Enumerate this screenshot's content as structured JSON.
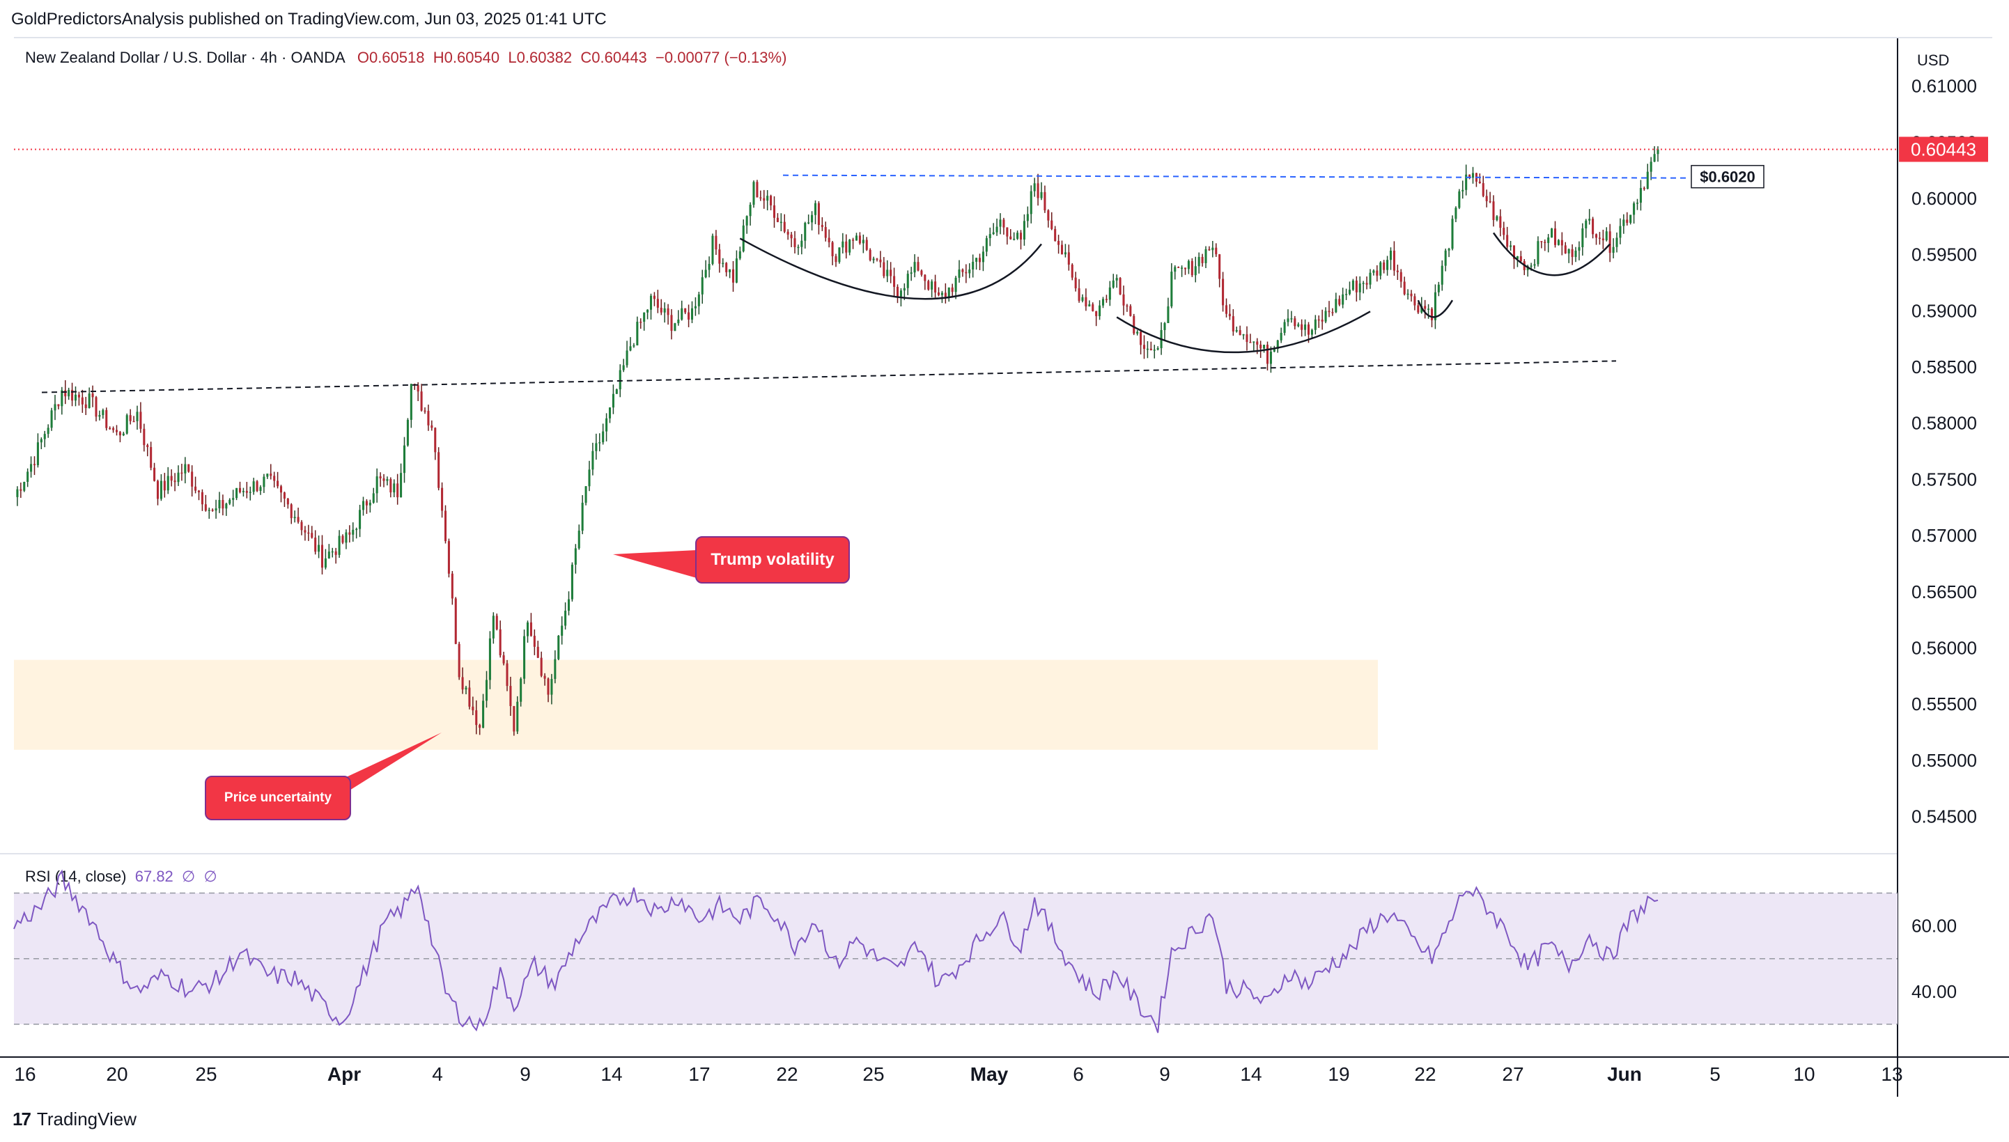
{
  "header": {
    "publisher": "GoldPredictorsAnalysis published on TradingView.com, Jun 03, 2025 01:41 UTC"
  },
  "legend": {
    "symbol": "New Zealand Dollar / U.S. Dollar · 4h · OANDA",
    "open": "O0.60518",
    "high": "H0.60540",
    "low": "L0.60382",
    "close": "C0.60443",
    "change": "−0.00077 (−0.13%)"
  },
  "axis": {
    "currency": "USD"
  },
  "rsi_legend": {
    "label": "RSI (14, close)",
    "value": "67.82",
    "extra1": "∅",
    "extra2": "∅"
  },
  "footer": {
    "brand": "TradingView",
    "logo": "17"
  },
  "colors": {
    "up": "#26a69a",
    "up_body": "#1e7d3a",
    "down": "#b22833",
    "rsi": "#7e57c2",
    "rsi_band": "#ede7f6",
    "accent": "#f23645",
    "zone": "#fff3e0",
    "level": "#2962ff"
  },
  "annotations": {
    "trump": "Trump volatility",
    "uncertainty": "Price uncertainty",
    "resistance_label": "$0.6020",
    "last_price": "0.60443"
  },
  "chart_data": [
    {
      "type": "candlestick",
      "title": "New Zealand Dollar / U.S. Dollar · 4h · OANDA",
      "ylim": [
        0.542,
        0.614
      ],
      "y_ticks": [
        "0.61000",
        "0.60500",
        "0.60000",
        "0.59500",
        "0.59000",
        "0.58500",
        "0.58000",
        "0.57500",
        "0.57000",
        "0.56500",
        "0.56000",
        "0.55500",
        "0.55000",
        "0.54500"
      ],
      "x_ticks": [
        "16",
        "20",
        "25",
        "Apr",
        "4",
        "9",
        "14",
        "17",
        "22",
        "25",
        "May",
        "6",
        "9",
        "14",
        "19",
        "22",
        "27",
        "Jun",
        "5",
        "10",
        "13"
      ],
      "last_price": 0.60443,
      "resistance": 0.602,
      "path_anchors": [
        [
          0,
          0.5735
        ],
        [
          6,
          0.577
        ],
        [
          14,
          0.583
        ],
        [
          22,
          0.582
        ],
        [
          30,
          0.579
        ],
        [
          36,
          0.581
        ],
        [
          42,
          0.574
        ],
        [
          50,
          0.576
        ],
        [
          58,
          0.572
        ],
        [
          66,
          0.574
        ],
        [
          74,
          0.575
        ],
        [
          82,
          0.572
        ],
        [
          90,
          0.568
        ],
        [
          98,
          0.57
        ],
        [
          106,
          0.575
        ],
        [
          112,
          0.574
        ],
        [
          116,
          0.5835
        ],
        [
          122,
          0.58
        ],
        [
          126,
          0.57
        ],
        [
          130,
          0.558
        ],
        [
          136,
          0.553
        ],
        [
          140,
          0.563
        ],
        [
          146,
          0.553
        ],
        [
          150,
          0.563
        ],
        [
          156,
          0.556
        ],
        [
          162,
          0.565
        ],
        [
          168,
          0.576
        ],
        [
          174,
          0.581
        ],
        [
          180,
          0.587
        ],
        [
          186,
          0.591
        ],
        [
          192,
          0.589
        ],
        [
          198,
          0.59
        ],
        [
          204,
          0.596
        ],
        [
          210,
          0.593
        ],
        [
          216,
          0.601
        ],
        [
          222,
          0.599
        ],
        [
          228,
          0.596
        ],
        [
          234,
          0.599
        ],
        [
          240,
          0.595
        ],
        [
          246,
          0.597
        ],
        [
          252,
          0.594
        ],
        [
          258,
          0.592
        ],
        [
          264,
          0.594
        ],
        [
          270,
          0.591
        ],
        [
          276,
          0.593
        ],
        [
          282,
          0.595
        ],
        [
          288,
          0.598
        ],
        [
          294,
          0.596
        ],
        [
          298,
          0.6015
        ],
        [
          304,
          0.597
        ],
        [
          310,
          0.592
        ],
        [
          316,
          0.59
        ],
        [
          322,
          0.593
        ],
        [
          328,
          0.588
        ],
        [
          334,
          0.586
        ],
        [
          338,
          0.593
        ],
        [
          344,
          0.594
        ],
        [
          350,
          0.596
        ],
        [
          354,
          0.5895
        ],
        [
          360,
          0.588
        ],
        [
          366,
          0.586
        ],
        [
          372,
          0.59
        ],
        [
          378,
          0.588
        ],
        [
          384,
          0.59
        ],
        [
          390,
          0.592
        ],
        [
          396,
          0.593
        ],
        [
          402,
          0.595
        ],
        [
          408,
          0.591
        ],
        [
          414,
          0.59
        ],
        [
          418,
          0.595
        ],
        [
          424,
          0.6025
        ],
        [
          430,
          0.6
        ],
        [
          436,
          0.596
        ],
        [
          442,
          0.594
        ],
        [
          448,
          0.597
        ],
        [
          454,
          0.595
        ],
        [
          460,
          0.598
        ],
        [
          466,
          0.596
        ],
        [
          472,
          0.599
        ],
        [
          478,
          0.603
        ],
        [
          480,
          0.6044
        ]
      ]
    },
    {
      "type": "line",
      "title": "RSI (14, close)",
      "ylim": [
        20,
        82
      ],
      "y_ticks": [
        40.0,
        60.0
      ],
      "bands": [
        70,
        50,
        30
      ],
      "last_value": 67.82,
      "points": [
        [
          0,
          60
        ],
        [
          8,
          66
        ],
        [
          14,
          74
        ],
        [
          22,
          63
        ],
        [
          30,
          48
        ],
        [
          36,
          40
        ],
        [
          44,
          45
        ],
        [
          52,
          40
        ],
        [
          60,
          44
        ],
        [
          66,
          52
        ],
        [
          74,
          45
        ],
        [
          82,
          44
        ],
        [
          90,
          36
        ],
        [
          96,
          31
        ],
        [
          102,
          45
        ],
        [
          108,
          60
        ],
        [
          114,
          66
        ],
        [
          118,
          73
        ],
        [
          122,
          56
        ],
        [
          126,
          40
        ],
        [
          130,
          33
        ],
        [
          136,
          29
        ],
        [
          142,
          45
        ],
        [
          146,
          36
        ],
        [
          152,
          48
        ],
        [
          158,
          42
        ],
        [
          164,
          55
        ],
        [
          170,
          62
        ],
        [
          176,
          68
        ],
        [
          182,
          70
        ],
        [
          188,
          64
        ],
        [
          194,
          69
        ],
        [
          200,
          62
        ],
        [
          206,
          66
        ],
        [
          212,
          62
        ],
        [
          218,
          68
        ],
        [
          222,
          64
        ],
        [
          228,
          54
        ],
        [
          234,
          62
        ],
        [
          240,
          48
        ],
        [
          246,
          56
        ],
        [
          252,
          50
        ],
        [
          258,
          46
        ],
        [
          264,
          55
        ],
        [
          270,
          42
        ],
        [
          276,
          48
        ],
        [
          282,
          56
        ],
        [
          288,
          63
        ],
        [
          294,
          54
        ],
        [
          298,
          68
        ],
        [
          304,
          56
        ],
        [
          310,
          46
        ],
        [
          316,
          39
        ],
        [
          322,
          46
        ],
        [
          328,
          36
        ],
        [
          334,
          30
        ],
        [
          338,
          52
        ],
        [
          344,
          58
        ],
        [
          350,
          64
        ],
        [
          354,
          42
        ],
        [
          360,
          40
        ],
        [
          366,
          36
        ],
        [
          372,
          46
        ],
        [
          378,
          42
        ],
        [
          384,
          48
        ],
        [
          390,
          52
        ],
        [
          396,
          60
        ],
        [
          402,
          64
        ],
        [
          408,
          56
        ],
        [
          414,
          50
        ],
        [
          418,
          58
        ],
        [
          424,
          72
        ],
        [
          430,
          66
        ],
        [
          436,
          58
        ],
        [
          442,
          47
        ],
        [
          448,
          54
        ],
        [
          454,
          48
        ],
        [
          460,
          57
        ],
        [
          466,
          50
        ],
        [
          472,
          62
        ],
        [
          478,
          68
        ],
        [
          480,
          67.82
        ]
      ]
    }
  ]
}
